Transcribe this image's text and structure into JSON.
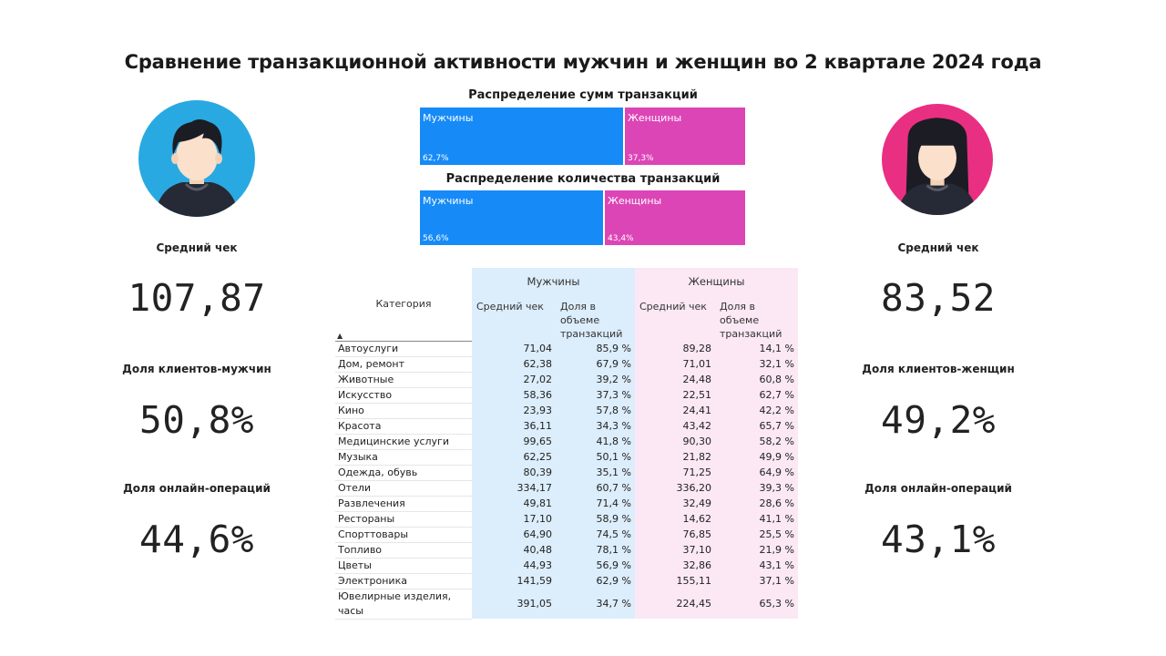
{
  "title": "Сравнение транзакционной активности мужчин и женщин во 2 квартале 2024 года",
  "colors": {
    "male": "#168bf8",
    "female": "#dc45b6",
    "male_light": "#dcedfb",
    "female_light": "#fbe8f4",
    "male_avatar": "#29a9e1",
    "female_avatar": "#e92f82"
  },
  "male": {
    "avg_check_label": "Средний чек",
    "avg_check_value": "107,87",
    "clients_share_label": "Доля клиентов-мужчин",
    "clients_share_value": "50,8%",
    "online_share_label": "Доля онлайн-операций",
    "online_share_value": "44,6%"
  },
  "female": {
    "avg_check_label": "Средний чек",
    "avg_check_value": "83,52",
    "clients_share_label": "Доля клиентов-женщин",
    "clients_share_value": "49,2%",
    "online_share_label": "Доля онлайн-операций",
    "online_share_value": "43,1%"
  },
  "chart_data": [
    {
      "type": "bar",
      "title": "Распределение сумм транзакций",
      "categories": [
        "Мужчины",
        "Женщины"
      ],
      "values": [
        62.7,
        37.3
      ],
      "labels": [
        "62,7%",
        "37,3%"
      ]
    },
    {
      "type": "bar",
      "title": "Распределение количества транзакций",
      "categories": [
        "Мужчины",
        "Женщины"
      ],
      "values": [
        56.6,
        43.4
      ],
      "labels": [
        "56,6%",
        "43,4%"
      ]
    },
    {
      "type": "table",
      "category_header": "Категория",
      "group_headers": [
        "Мужчины",
        "Женщины"
      ],
      "sub_headers": [
        "Средний чек",
        "Доля в объеме транзакций",
        "Средний чек",
        "Доля в объеме транзакций"
      ],
      "rows": [
        [
          "Автоуслуги",
          "71,04",
          "85,9 %",
          "89,28",
          "14,1 %"
        ],
        [
          "Дом, ремонт",
          "62,38",
          "67,9 %",
          "71,01",
          "32,1 %"
        ],
        [
          "Животные",
          "27,02",
          "39,2 %",
          "24,48",
          "60,8 %"
        ],
        [
          "Искусство",
          "58,36",
          "37,3 %",
          "22,51",
          "62,7 %"
        ],
        [
          "Кино",
          "23,93",
          "57,8 %",
          "24,41",
          "42,2 %"
        ],
        [
          "Красота",
          "36,11",
          "34,3 %",
          "43,42",
          "65,7 %"
        ],
        [
          "Медицинские услуги",
          "99,65",
          "41,8 %",
          "90,30",
          "58,2 %"
        ],
        [
          "Музыка",
          "62,25",
          "50,1 %",
          "21,82",
          "49,9 %"
        ],
        [
          "Одежда, обувь",
          "80,39",
          "35,1 %",
          "71,25",
          "64,9 %"
        ],
        [
          "Отели",
          "334,17",
          "60,7 %",
          "336,20",
          "39,3 %"
        ],
        [
          "Развлечения",
          "49,81",
          "71,4 %",
          "32,49",
          "28,6 %"
        ],
        [
          "Рестораны",
          "17,10",
          "58,9 %",
          "14,62",
          "41,1 %"
        ],
        [
          "Спорттовары",
          "64,90",
          "74,5 %",
          "76,85",
          "25,5 %"
        ],
        [
          "Топливо",
          "40,48",
          "78,1 %",
          "37,10",
          "21,9 %"
        ],
        [
          "Цветы",
          "44,93",
          "56,9 %",
          "32,86",
          "43,1 %"
        ],
        [
          "Электроника",
          "141,59",
          "62,9 %",
          "155,11",
          "37,1 %"
        ],
        [
          "Ювелирные изделия, часы",
          "391,05",
          "34,7 %",
          "224,45",
          "65,3 %"
        ]
      ]
    }
  ]
}
